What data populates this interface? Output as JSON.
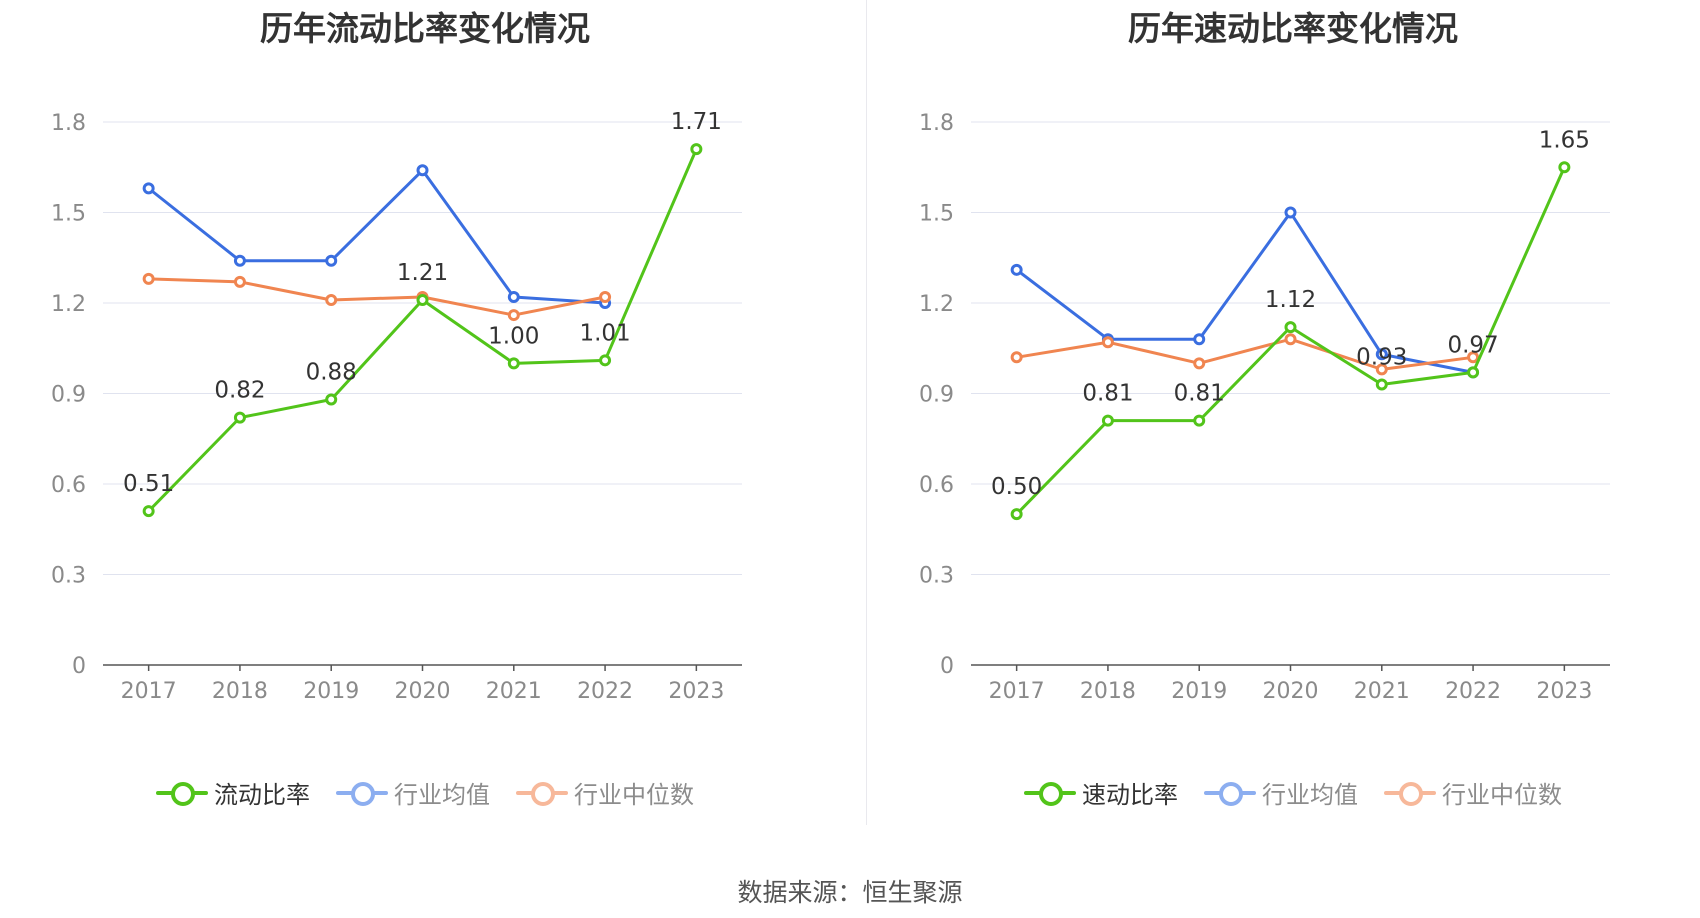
{
  "chart_data": [
    {
      "type": "line",
      "title": "历年流动比率变化情况",
      "categories": [
        "2017",
        "2018",
        "2019",
        "2020",
        "2021",
        "2022",
        "2023"
      ],
      "ylim": [
        0,
        1.8
      ],
      "yticks": [
        "0",
        "0.3",
        "0.6",
        "0.9",
        "1.2",
        "1.5",
        "1.8"
      ],
      "series": [
        {
          "name": "流动比率",
          "color": "#52c41a",
          "values": [
            0.51,
            0.82,
            0.88,
            1.21,
            1.0,
            1.01,
            1.71
          ],
          "labels": [
            "0.51",
            "0.82",
            "0.88",
            "1.21",
            "1.00",
            "1.01",
            "1.71"
          ]
        },
        {
          "name": "行业均值",
          "color": "#3a6ee0",
          "legend_color": "#8caef0",
          "values": [
            1.58,
            1.34,
            1.34,
            1.64,
            1.22,
            1.2,
            null
          ]
        },
        {
          "name": "行业中位数",
          "color": "#f08550",
          "legend_color": "#f7b89a",
          "values": [
            1.28,
            1.27,
            1.21,
            1.22,
            1.16,
            1.22,
            null
          ]
        }
      ],
      "legend": "bottom-center"
    },
    {
      "type": "line",
      "title": "历年速动比率变化情况",
      "categories": [
        "2017",
        "2018",
        "2019",
        "2020",
        "2021",
        "2022",
        "2023"
      ],
      "ylim": [
        0,
        1.8
      ],
      "yticks": [
        "0",
        "0.3",
        "0.6",
        "0.9",
        "1.2",
        "1.5",
        "1.8"
      ],
      "series": [
        {
          "name": "速动比率",
          "color": "#52c41a",
          "values": [
            0.5,
            0.81,
            0.81,
            1.12,
            0.93,
            0.97,
            1.65
          ],
          "labels": [
            "0.50",
            "0.81",
            "0.81",
            "1.12",
            "0.93",
            "0.97",
            "1.65"
          ]
        },
        {
          "name": "行业均值",
          "color": "#3a6ee0",
          "legend_color": "#8caef0",
          "values": [
            1.31,
            1.08,
            1.08,
            1.5,
            1.03,
            0.97,
            null
          ]
        },
        {
          "name": "行业中位数",
          "color": "#f08550",
          "legend_color": "#f7b89a",
          "values": [
            1.02,
            1.07,
            1.0,
            1.08,
            0.98,
            1.02,
            null
          ]
        }
      ],
      "legend": "bottom-center"
    }
  ],
  "footer": {
    "source": "数据来源：恒生聚源"
  }
}
